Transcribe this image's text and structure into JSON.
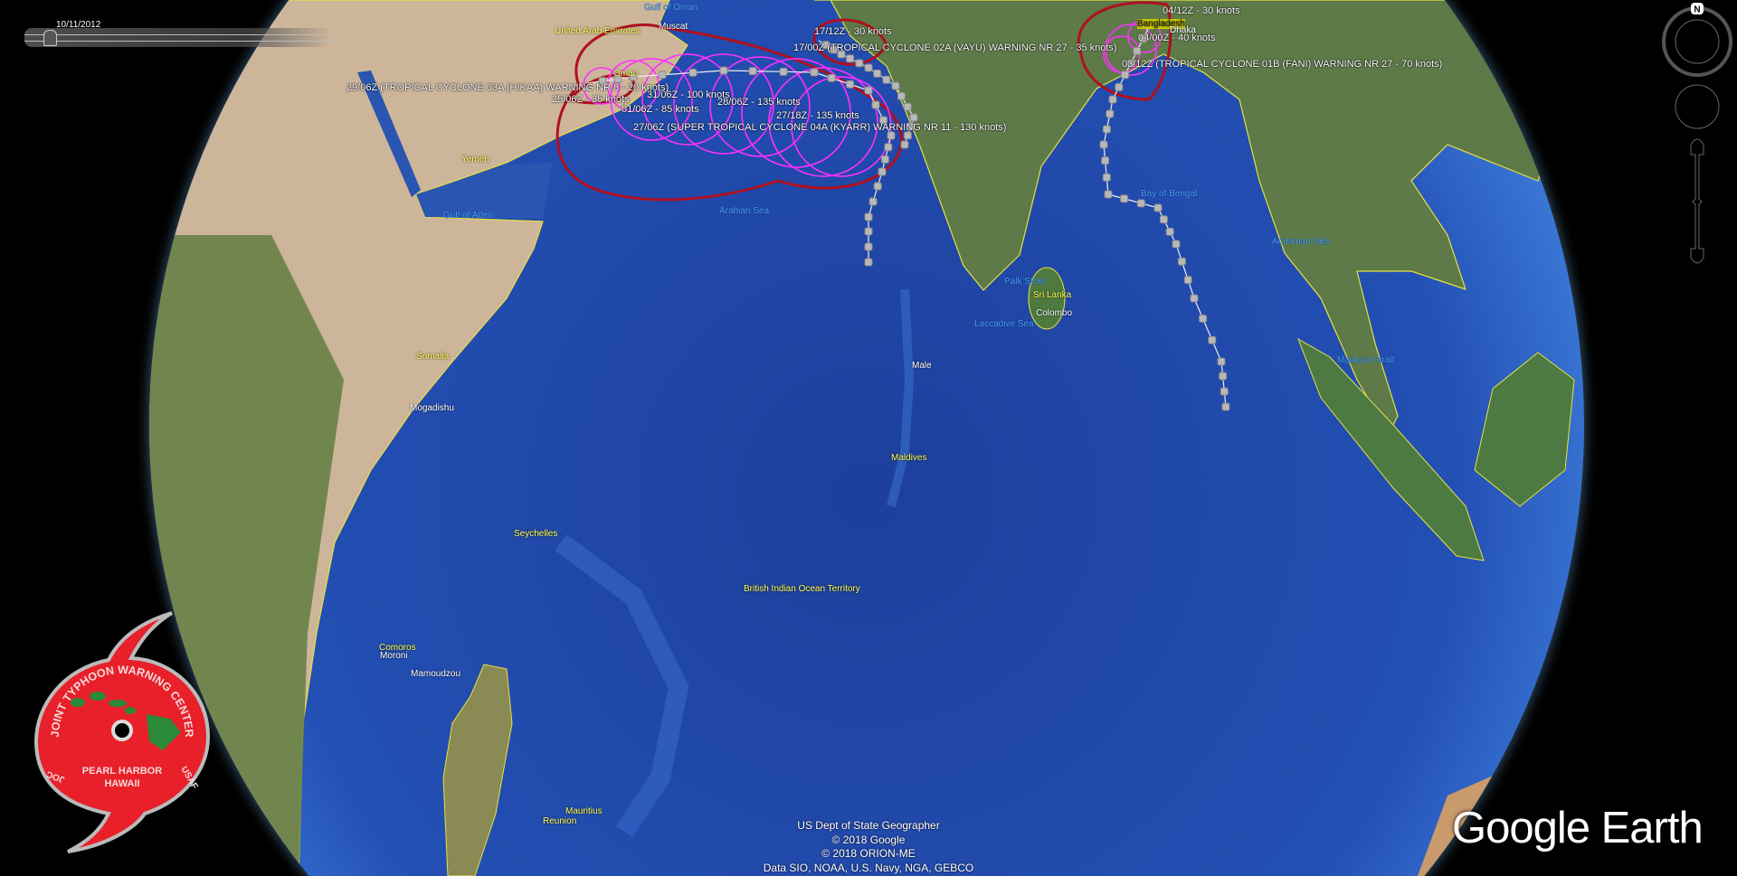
{
  "time_slider": {
    "date": "10/11/2012"
  },
  "storm_labels": {
    "vayu_1": "17/12Z - 30 knots",
    "vayu_2": "17/00Z (TROPICAL CYCLONE 02A (VAYU) WARNING NR 27 - 35 knots)",
    "kyarr_1": "31/06Z - 100 knots",
    "kyarr_2": "28/06Z - 135 knots",
    "kyarr_3": "01/06Z - 85 knots",
    "kyarr_4": "27/18Z - 135 knots",
    "kyarr_5": "27/06Z (SUPER TROPICAL CYCLONE 04A (KYARR) WARNING NR 11 - 130 knots)",
    "hikaa_1": "29/06Z (TROPICAL CYCLONE 03A (HIKAA) WARNING NR 8 - 20 knots)",
    "hikaa_2": "25/06Z - 35 knots",
    "fani_1": "04/12Z - 30 knots",
    "fani_2": "04/00Z - 40 knots",
    "fani_3": "03/12Z (TROPICAL CYCLONE 01B (FANI) WARNING NR 27 - 70 knots)"
  },
  "places": {
    "uae": "United Arab Emirates",
    "muscat": "Muscat",
    "gulf_oman": "Gulf of Oman",
    "oman": "Oman",
    "yemen": "Yemen",
    "gulf_aden": "Gulf of Aden",
    "arabian_sea": "Arabian Sea",
    "somalia": "Somalia",
    "mogadishu": "Mogadishu",
    "bangladesh": "Bangladesh",
    "dhaka": "Dhaka",
    "bay_bengal": "Bay of Bengal",
    "palk": "Palk Strait",
    "sri_lanka": "Sri Lanka",
    "colombo": "Colombo",
    "laccadive": "Laccadive Sea",
    "male": "Male",
    "maldives": "Maldives",
    "andaman": "Andaman Sea",
    "malacca": "Malacca Strait",
    "seychelles": "Seychelles",
    "comoros": "Comoros",
    "moroni": "Moroni",
    "mamoudzou": "Mamoudzou",
    "mauritius": "Mauritius",
    "reunion": "Reunion",
    "biot": "British Indian Ocean Territory"
  },
  "attribution": [
    "US Dept of State Geographer",
    "© 2018 Google",
    "© 2018 ORION-ME",
    "Data SIO, NOAA, U.S. Navy, NGA, GEBCO"
  ],
  "branding": {
    "logo": "Google Earth"
  },
  "jtwc_logo": {
    "ring": "JOINT TYPHOON WARNING CENTER",
    "line1": "PEARL HARBOR",
    "line2": "HAWAII",
    "left": "JOC",
    "right": "USAF"
  },
  "navigation": {
    "compass_label": "N"
  },
  "colors": {
    "danger_area": "#b0101e",
    "wind_radii": "#ff30ff",
    "track": "#d8d8d8",
    "borders": "#f0f020",
    "ocean": "#1f47a8",
    "jtwc_red": "#e8202a"
  }
}
